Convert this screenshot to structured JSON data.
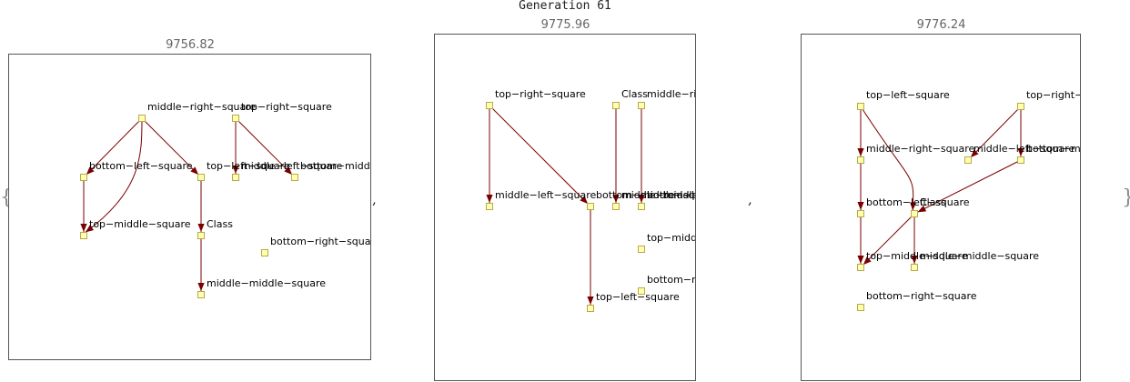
{
  "title": "Generation 61",
  "separators": {
    "open": "{",
    "close": "}",
    "comma": ","
  },
  "colors": {
    "edge": "#7a0000",
    "node_fill": "#ffffb0",
    "node_stroke": "#b8a94a",
    "frame": "#555555"
  },
  "panels": [
    {
      "score": "9756.82",
      "nodes": [
        {
          "id": "mrs",
          "label": "middle−right−square"
        },
        {
          "id": "trs",
          "label": "top−right−square"
        },
        {
          "id": "bls",
          "label": "bottom−left−square"
        },
        {
          "id": "tls",
          "label": "top−left−square"
        },
        {
          "id": "mls",
          "label": "middle−left−square"
        },
        {
          "id": "bms",
          "label": "bottom−middle−square"
        },
        {
          "id": "tms",
          "label": "top−middle−square"
        },
        {
          "id": "cls",
          "label": "Class"
        },
        {
          "id": "brs",
          "label": "bottom−right−square"
        },
        {
          "id": "mms",
          "label": "middle−middle−square"
        }
      ],
      "edges": [
        {
          "from": "mrs",
          "to": "bls"
        },
        {
          "from": "mrs",
          "to": "tls"
        },
        {
          "from": "mrs",
          "to": "tms"
        },
        {
          "from": "trs",
          "to": "mls"
        },
        {
          "from": "trs",
          "to": "bms"
        },
        {
          "from": "bls",
          "to": "tms"
        },
        {
          "from": "tls",
          "to": "cls"
        },
        {
          "from": "cls",
          "to": "mms"
        }
      ]
    },
    {
      "score": "9775.96",
      "nodes": [
        {
          "id": "trs",
          "label": "top−right−square"
        },
        {
          "id": "cls",
          "label": "Class"
        },
        {
          "id": "mrs",
          "label": "middle−right−square"
        },
        {
          "id": "mls",
          "label": "middle−left−square"
        },
        {
          "id": "bms",
          "label": "bottom−middle−square"
        },
        {
          "id": "mms",
          "label": "middle−middle−square"
        },
        {
          "id": "bls",
          "label": "bottom−left−square"
        },
        {
          "id": "tms",
          "label": "top−middle−square"
        },
        {
          "id": "brs",
          "label": "bottom−right−square"
        },
        {
          "id": "tls",
          "label": "top−left−square"
        }
      ],
      "edges": [
        {
          "from": "trs",
          "to": "mls"
        },
        {
          "from": "trs",
          "to": "bms"
        },
        {
          "from": "cls",
          "to": "mms"
        },
        {
          "from": "mrs",
          "to": "bls"
        },
        {
          "from": "bms",
          "to": "tls"
        }
      ]
    },
    {
      "score": "9776.24",
      "nodes": [
        {
          "id": "tls",
          "label": "top−left−square"
        },
        {
          "id": "trs",
          "label": "top−right−square"
        },
        {
          "id": "mrs",
          "label": "middle−right−square"
        },
        {
          "id": "mls",
          "label": "middle−left−square"
        },
        {
          "id": "bms",
          "label": "bottom−middle−square"
        },
        {
          "id": "bls",
          "label": "bottom−left−square"
        },
        {
          "id": "cls",
          "label": "Class"
        },
        {
          "id": "tms",
          "label": "top−middle−square"
        },
        {
          "id": "mms",
          "label": "middle−middle−square"
        },
        {
          "id": "brs",
          "label": "bottom−right−square"
        }
      ],
      "edges": [
        {
          "from": "tls",
          "to": "mrs"
        },
        {
          "from": "tls",
          "to": "cls"
        },
        {
          "from": "trs",
          "to": "mls"
        },
        {
          "from": "trs",
          "to": "bms"
        },
        {
          "from": "mrs",
          "to": "bls"
        },
        {
          "from": "bms",
          "to": "cls"
        },
        {
          "from": "bls",
          "to": "tms"
        },
        {
          "from": "cls",
          "to": "tms"
        },
        {
          "from": "cls",
          "to": "mms"
        }
      ]
    }
  ]
}
